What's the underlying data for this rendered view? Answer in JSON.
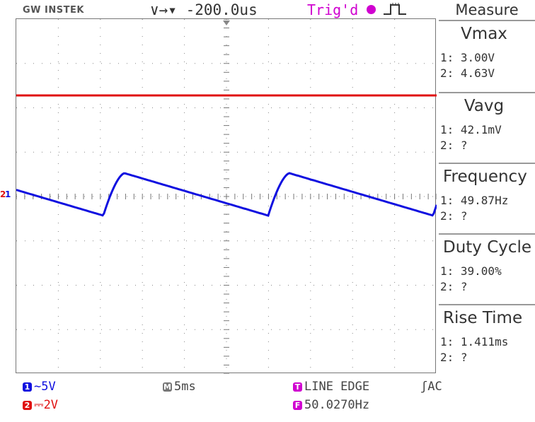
{
  "header": {
    "brand": "GW INSTEK",
    "timebase_offset": "∨→▾ -200.0us",
    "trigger_status": "Trig'd",
    "trigger_icon": "record-dot-icon",
    "pulse_icon": "rising-pulse-icon"
  },
  "measure": {
    "title": "Measure",
    "items": [
      {
        "name": "Vmax",
        "ch1": "1: 3.00V",
        "ch2": "2: 4.63V"
      },
      {
        "name": "Vavg",
        "ch1": "1: 42.1mV",
        "ch2": "2:    ?"
      },
      {
        "name": "Frequency",
        "ch1": "1: 49.87Hz",
        "ch2": "2:    ?"
      },
      {
        "name": "Duty Cycle",
        "ch1": "1: 39.00%",
        "ch2": "2:    ?"
      },
      {
        "name": "Rise Time",
        "ch1": "1: 1.411ms",
        "ch2": "2:    ?"
      }
    ]
  },
  "status": {
    "ch1_badge": "1",
    "ch1_scale": "∼5V",
    "ch2_badge": "2",
    "ch2_scale": "⎓2V",
    "timebase_badge": "M",
    "timebase": "5ms",
    "trigger_badge": "T",
    "trigger_mode": "LINE EDGE",
    "coupling": "ʃAC",
    "freq_badge": "F",
    "trigger_freq": "50.0270Hz"
  },
  "markers": {
    "ch1_ground": "1",
    "ch2_ground": "2"
  },
  "colors": {
    "ch1": "#1010e0",
    "ch2": "#e01010",
    "trigger": "#d000d0"
  }
}
